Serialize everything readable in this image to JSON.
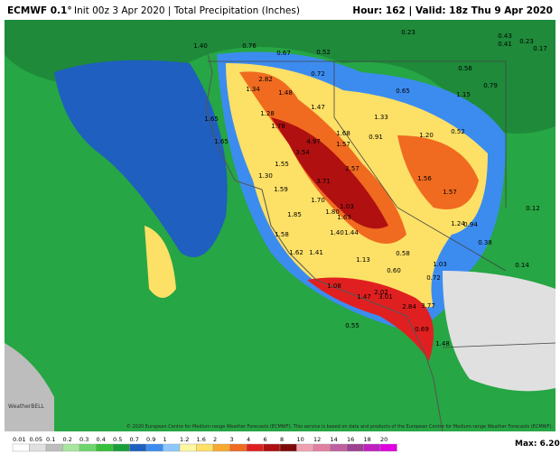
{
  "header": {
    "model": "ECMWF 0.1°",
    "info": "Init 00z 3 Apr 2020 | Total Precipitation (Inches)",
    "valid": "Hour: 162 | Valid: 18z Thu 9 Apr 2020"
  },
  "map": {
    "point_labels": [
      "1.40",
      "0.76",
      "0.67",
      "0.52",
      "0.23",
      "0.43",
      "0.41",
      "0.23",
      "0.17",
      "2.82",
      "1.34",
      "1.48",
      "0.72",
      "0.56",
      "0.79",
      "1.15",
      "0.65",
      "1.28",
      "1.47",
      "1.33",
      "1.65",
      "1.78",
      "1.68",
      "0.91",
      "1.20",
      "0.52",
      "1.65",
      "4.97",
      "1.57",
      "3.54",
      "1.55",
      "2.57",
      "1.30",
      "1.56",
      "1.59",
      "3.71",
      "1.57",
      "1.70",
      "1.03",
      "1.80",
      "1.63",
      "1.85",
      "1.24",
      "0.94",
      "0.12",
      "1.58",
      "1.40",
      "1.44",
      "1.62",
      "1.41",
      "1.13",
      "0.58",
      "1.03",
      "0.14",
      "0.60",
      "0.72",
      "1.08",
      "2.02",
      "1.47",
      "2.84",
      "3.77",
      "0.55",
      "3.01",
      "0.69",
      "1.48",
      "0.38"
    ],
    "copyright": "© 2020 European Centre for Medium-range Weather Forecasts (ECMWF). This service is based on data and products of the European Centre for Medium-range Weather Forecasts (ECMWF).",
    "logo": "WeatherBELL"
  },
  "colorbar": {
    "labels": [
      "0.01",
      "0.05",
      "0.1",
      "0.2",
      "0.3",
      "0.4",
      "0.5",
      "0.7",
      "0.9",
      "1",
      "1.2",
      "1.6",
      "2",
      "3",
      "4",
      "6",
      "8",
      "10",
      "12",
      "14",
      "16",
      "18",
      "20"
    ],
    "colors": [
      "#ffffff",
      "#e0e0e0",
      "#bdbdbd",
      "#a8e6a0",
      "#6cd66c",
      "#35bf3a",
      "#1a9e3a",
      "#1e5fbf",
      "#3c8cf0",
      "#8cc8ff",
      "#fff7a0",
      "#fde066",
      "#f9a830",
      "#f06a20",
      "#e02020",
      "#b01010",
      "#7c0a0a",
      "#f0a0b0",
      "#e080a0",
      "#c060a0",
      "#a04090",
      "#c020c0",
      "#e000e0"
    ],
    "max": "Max: 6.20"
  }
}
